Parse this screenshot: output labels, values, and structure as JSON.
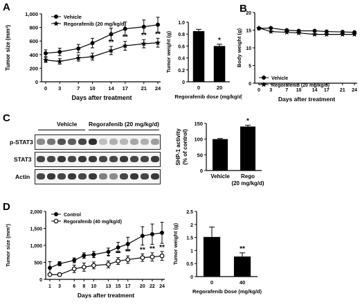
{
  "panel_letters": {
    "A": "A",
    "B": "B",
    "C": "C",
    "D": "D"
  },
  "chart_data": [
    {
      "id": "A1",
      "type": "line",
      "xlabel": "Days after treatment",
      "ylabel": "Tumor size (mm³)",
      "x": [
        0,
        3,
        7,
        10,
        14,
        17,
        21,
        24
      ],
      "xticks": [
        "0",
        "3",
        "7",
        "10",
        "14",
        "17",
        "21",
        "24"
      ],
      "ylim": [
        0,
        1000
      ],
      "yticks": [
        "0",
        "200",
        "400",
        "600",
        "800",
        "1,000"
      ],
      "legend": [
        "Vehicle",
        "Regorafenib (20 mg/kg/d)"
      ],
      "series": [
        {
          "name": "Vehicle",
          "values": [
            420,
            440,
            490,
            570,
            700,
            780,
            810,
            840
          ],
          "err": [
            50,
            55,
            60,
            70,
            90,
            100,
            100,
            110
          ],
          "marker": "circle-filled"
        },
        {
          "name": "Regorafenib (20 mg/kg/d)",
          "values": [
            320,
            300,
            350,
            370,
            460,
            530,
            560,
            575
          ],
          "err": [
            35,
            40,
            45,
            50,
            60,
            65,
            60,
            65
          ],
          "marker": "star"
        }
      ],
      "annotations": [
        {
          "x": 14,
          "text": "**"
        },
        {
          "x": 17,
          "text": "**"
        },
        {
          "x": 21,
          "text": "**"
        },
        {
          "x": 24,
          "text": "**"
        }
      ]
    },
    {
      "id": "A2",
      "type": "bar",
      "categories": [
        "0",
        "20"
      ],
      "values": [
        0.85,
        0.6
      ],
      "err": [
        0.03,
        0.03
      ],
      "xlabel": "Regorafenib dose (mg/kg/d)",
      "ylabel": "Tumor weight (g)",
      "ylim": [
        0,
        1.0
      ],
      "yticks": [
        "0",
        "0.2",
        "0.4",
        "0.6",
        "0.8",
        "1.0"
      ],
      "annotations": [
        {
          "index": 1,
          "text": "*"
        }
      ]
    },
    {
      "id": "B",
      "type": "line",
      "xlabel": "Days after treatment",
      "ylabel": "Body weight (g)",
      "x": [
        0,
        3,
        7,
        10,
        14,
        17,
        21,
        24
      ],
      "xticks": [
        "0",
        "3",
        "7",
        "10",
        "14",
        "17",
        "21",
        "24"
      ],
      "ylim": [
        0,
        20
      ],
      "yticks": [
        "0",
        "5",
        "10",
        "15",
        "20"
      ],
      "legend": [
        "Vehicle",
        "Regorafenib (20 mg/kg/d)"
      ],
      "series": [
        {
          "name": "Vehicle",
          "values": [
            15.5,
            15.6,
            15.0,
            14.8,
            14.8,
            14.6,
            14.5,
            14.4
          ],
          "marker": "circle-filled"
        },
        {
          "name": "Regorafenib (20 mg/kg/d)",
          "values": [
            15.6,
            14.6,
            14.4,
            14.2,
            13.8,
            13.8,
            13.8,
            13.8
          ],
          "marker": "star"
        }
      ]
    },
    {
      "id": "C2",
      "type": "bar",
      "categories": [
        "Vehicle",
        "Rego"
      ],
      "category_sublabels": [
        "",
        "(20 mg/kg/d)"
      ],
      "values": [
        100,
        140
      ],
      "err": [
        2,
        4
      ],
      "ylabel": "SHP-1 activity (% of control)",
      "ylim": [
        0,
        150
      ],
      "yticks": [
        "0",
        "50",
        "100",
        "150"
      ],
      "annotations": [
        {
          "index": 1,
          "text": "*"
        }
      ]
    },
    {
      "id": "D1",
      "type": "line",
      "xlabel": "Days after treatment",
      "ylabel": "Tumor size (mm³)",
      "x": [
        1,
        3,
        6,
        8,
        10,
        13,
        15,
        17,
        20,
        22,
        24
      ],
      "xticks": [
        "1",
        "3",
        "6",
        "8",
        "10",
        "13",
        "15",
        "17",
        "20",
        "22",
        "24"
      ],
      "ylim": [
        0,
        2000
      ],
      "yticks": [
        "0",
        "500",
        "1,000",
        "1,500",
        "2,000"
      ],
      "legend": [
        "Control",
        "Regorafenib (40 mg/kg/d)"
      ],
      "series": [
        {
          "name": "Control",
          "values": [
            340,
            460,
            560,
            700,
            730,
            810,
            940,
            1040,
            1280,
            1330,
            1370
          ],
          "err": [
            180,
            60,
            70,
            80,
            90,
            110,
            150,
            200,
            270,
            300,
            310
          ],
          "marker": "circle-filled"
        },
        {
          "name": "Regorafenib (40 mg/kg/d)",
          "values": [
            140,
            140,
            310,
            360,
            410,
            440,
            540,
            580,
            640,
            660,
            690
          ],
          "err": [
            30,
            50,
            110,
            120,
            100,
            100,
            100,
            110,
            110,
            120,
            130
          ],
          "marker": "circle-open"
        }
      ],
      "annotations": [
        {
          "x": 8,
          "text": "*"
        },
        {
          "x": 10,
          "text": "*"
        },
        {
          "x": 13,
          "text": "*"
        },
        {
          "x": 15,
          "text": "**"
        },
        {
          "x": 17,
          "text": "**"
        },
        {
          "x": 20,
          "text": "**"
        },
        {
          "x": 22,
          "text": "**"
        },
        {
          "x": 24,
          "text": "**"
        }
      ]
    },
    {
      "id": "D2",
      "type": "bar",
      "categories": [
        "0",
        "40"
      ],
      "values": [
        1.52,
        0.77
      ],
      "err": [
        0.38,
        0.14
      ],
      "xlabel": "Regorafenib Dose (mg/kg/d)",
      "ylabel": "Tumor weight (g)",
      "ylim": [
        0,
        2.5
      ],
      "yticks": [
        "0",
        "0.5",
        "1",
        "1.5",
        "2",
        "2.5"
      ],
      "annotations": [
        {
          "index": 1,
          "text": "**"
        }
      ]
    }
  ],
  "blot": {
    "groups": [
      "Vehicle",
      "Regorafenib (20 mg/kg/d)"
    ],
    "rows": [
      "p-STAT3",
      "STAT3",
      "Actin"
    ],
    "lanes_per_group": 6,
    "intensity": [
      [
        0.55,
        0.65,
        0.8,
        0.75,
        0.85,
        0.95,
        0.25,
        0.35,
        0.3,
        0.4,
        0.35,
        0.45
      ],
      [
        0.85,
        0.85,
        0.9,
        0.85,
        0.9,
        0.9,
        0.85,
        0.85,
        0.9,
        0.85,
        0.85,
        0.9
      ],
      [
        0.85,
        0.9,
        0.85,
        0.9,
        0.85,
        0.9,
        0.6,
        0.55,
        0.85,
        0.9,
        0.85,
        0.9
      ]
    ]
  }
}
